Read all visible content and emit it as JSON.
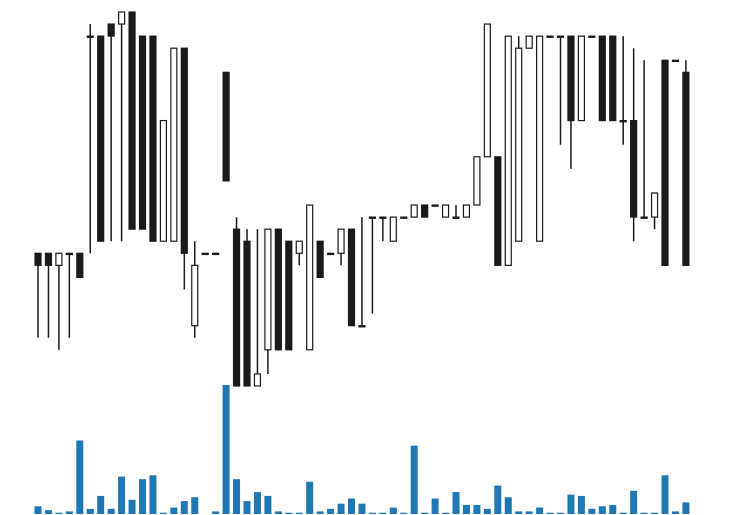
{
  "chart_data": {
    "type": "candlestick",
    "grid": false,
    "legend": "none",
    "colors": {
      "up_body": "#ffffff",
      "down_body": "#1a1a1a",
      "outline": "#1a1a1a",
      "wick": "#1a1a1a",
      "volume": "#1f77b4",
      "background": "#ffffff"
    },
    "price_range": [
      -11,
      20
    ],
    "volume_range": [
      0,
      100
    ],
    "candles": [
      {
        "open": 0,
        "high": 0,
        "low": -7,
        "close": -1,
        "volume": 6
      },
      {
        "open": 0,
        "high": 0,
        "low": -7,
        "close": -1,
        "volume": 3
      },
      {
        "open": -1,
        "high": 0,
        "low": -8,
        "close": 0,
        "volume": 1
      },
      {
        "open": 0,
        "high": 0,
        "low": -7,
        "close": 0,
        "volume": 2
      },
      {
        "open": 0,
        "high": 0,
        "low": -2,
        "close": -2,
        "volume": 57
      },
      {
        "open": 18,
        "high": 19,
        "low": 0,
        "close": 18,
        "volume": 4
      },
      {
        "open": 18,
        "high": 18,
        "low": 1,
        "close": 1,
        "volume": 14
      },
      {
        "open": 19,
        "high": 19,
        "low": 1,
        "close": 18,
        "volume": 4
      },
      {
        "open": 19,
        "high": 20,
        "low": 1,
        "close": 20,
        "volume": 29
      },
      {
        "open": 20,
        "high": 20,
        "low": 2,
        "close": 2,
        "volume": 11
      },
      {
        "open": 18,
        "high": 18,
        "low": 2,
        "close": 2,
        "volume": 27
      },
      {
        "open": 18,
        "high": 18,
        "low": 1,
        "close": 1,
        "volume": 30
      },
      {
        "open": 1,
        "high": 11,
        "low": 1,
        "close": 11,
        "volume": 1
      },
      {
        "open": 1,
        "high": 17,
        "low": 1,
        "close": 17,
        "volume": 5
      },
      {
        "open": 17,
        "high": 17,
        "low": -3,
        "close": 0,
        "volume": 10
      },
      {
        "open": -6,
        "high": 1,
        "low": -7,
        "close": -1,
        "volume": 13
      },
      {
        "open": 0,
        "high": 0,
        "low": 0,
        "close": 0,
        "volume": 0
      },
      {
        "open": 0,
        "high": 0,
        "low": 0,
        "close": 0,
        "volume": 2
      },
      {
        "open": 15,
        "high": 15,
        "low": 6,
        "close": 6,
        "volume": 100
      },
      {
        "open": 2,
        "high": 3,
        "low": -11,
        "close": -11,
        "volume": 27
      },
      {
        "open": 1,
        "high": 2,
        "low": -11,
        "close": -11,
        "volume": 10
      },
      {
        "open": -11,
        "high": 2,
        "low": -11,
        "close": -10,
        "volume": 17
      },
      {
        "open": -8,
        "high": 2,
        "low": -10,
        "close": 2,
        "volume": 14
      },
      {
        "open": 2,
        "high": 2,
        "low": -8,
        "close": -8,
        "volume": 2
      },
      {
        "open": 1,
        "high": 1,
        "low": -8,
        "close": -8,
        "volume": 1
      },
      {
        "open": 0,
        "high": 1,
        "low": -1,
        "close": 1,
        "volume": 1
      },
      {
        "open": -8,
        "high": 4,
        "low": -8,
        "close": 4,
        "volume": 25
      },
      {
        "open": 1,
        "high": 1,
        "low": -2,
        "close": -2,
        "volume": 2
      },
      {
        "open": 0,
        "high": 0,
        "low": 0,
        "close": 0,
        "volume": 4
      },
      {
        "open": 0,
        "high": 2,
        "low": -1,
        "close": 2,
        "volume": 8
      },
      {
        "open": 2,
        "high": 2,
        "low": -6,
        "close": -6,
        "volume": 12
      },
      {
        "open": -6,
        "high": 3,
        "low": -6,
        "close": -6,
        "volume": 8
      },
      {
        "open": 3,
        "high": 3,
        "low": -5,
        "close": 3,
        "volume": 1
      },
      {
        "open": 3,
        "high": 3,
        "low": 1,
        "close": 3,
        "volume": 1
      },
      {
        "open": 1,
        "high": 3,
        "low": 1,
        "close": 3,
        "volume": 5
      },
      {
        "open": 3,
        "high": 3,
        "low": 3,
        "close": 3,
        "volume": 1
      },
      {
        "open": 3,
        "high": 4,
        "low": 3,
        "close": 4,
        "volume": 53
      },
      {
        "open": 4,
        "high": 4,
        "low": 3,
        "close": 3,
        "volume": 1
      },
      {
        "open": 4,
        "high": 4,
        "low": 4,
        "close": 4,
        "volume": 12
      },
      {
        "open": 3,
        "high": 4,
        "low": 3,
        "close": 4,
        "volume": 1
      },
      {
        "open": 3,
        "high": 4,
        "low": 3,
        "close": 3,
        "volume": 17
      },
      {
        "open": 3,
        "high": 4,
        "low": 3,
        "close": 4,
        "volume": 7
      },
      {
        "open": 4,
        "high": 8,
        "low": 4,
        "close": 8,
        "volume": 7
      },
      {
        "open": 8,
        "high": 19,
        "low": 8,
        "close": 19,
        "volume": 4
      },
      {
        "open": 8,
        "high": 8,
        "low": -1,
        "close": -1,
        "volume": 22
      },
      {
        "open": -1,
        "high": 18,
        "low": -1,
        "close": 18,
        "volume": 13
      },
      {
        "open": 1,
        "high": 18,
        "low": 1,
        "close": 17,
        "volume": 2
      },
      {
        "open": 17,
        "high": 18,
        "low": 17,
        "close": 18,
        "volume": 2
      },
      {
        "open": 1,
        "high": 18,
        "low": 1,
        "close": 18,
        "volume": 5
      },
      {
        "open": 18,
        "high": 18,
        "low": 18,
        "close": 18,
        "volume": 1
      },
      {
        "open": 18,
        "high": 18,
        "low": 9,
        "close": 18,
        "volume": 1
      },
      {
        "open": 18,
        "high": 18,
        "low": 7,
        "close": 11,
        "volume": 15
      },
      {
        "open": 11,
        "high": 18,
        "low": 11,
        "close": 18,
        "volume": 14
      },
      {
        "open": 18,
        "high": 18,
        "low": 18,
        "close": 18,
        "volume": 4
      },
      {
        "open": 18,
        "high": 18,
        "low": 11,
        "close": 11,
        "volume": 6
      },
      {
        "open": 18,
        "high": 18,
        "low": 11,
        "close": 11,
        "volume": 7
      },
      {
        "open": 11,
        "high": 18,
        "low": 9,
        "close": 11,
        "volume": 1
      },
      {
        "open": 11,
        "high": 17,
        "low": 1,
        "close": 3,
        "volume": 18
      },
      {
        "open": 3,
        "high": 16,
        "low": 3,
        "close": 3,
        "volume": 1
      },
      {
        "open": 3,
        "high": 5,
        "low": 2,
        "close": 5,
        "volume": 1
      },
      {
        "open": 16,
        "high": 16,
        "low": -1,
        "close": -1,
        "volume": 30
      },
      {
        "open": 16,
        "high": 16,
        "low": 16,
        "close": 16,
        "volume": 2
      },
      {
        "open": 15,
        "high": 16,
        "low": -1,
        "close": -1,
        "volume": 9
      }
    ]
  }
}
